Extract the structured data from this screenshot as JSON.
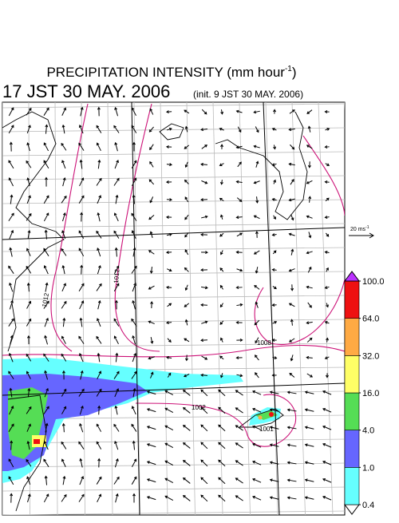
{
  "header": {
    "title": "PRECIPITATION INTENSITY (mm hour",
    "title_superscript": "-1",
    "title_close": ")",
    "valid_time": "17 JST 30 MAY. 2006",
    "init_time": "(init. 9 JST 30 MAY. 2006)"
  },
  "vector_reference": {
    "label": "20 ms",
    "superscript": "-1"
  },
  "isobar_labels": [
    1012,
    1012,
    1008,
    1002,
    1001
  ],
  "colorbar": {
    "ticks": [
      0.4,
      {
        "value": 1,
        "label": "1.0"
      },
      {
        "value": 4,
        "label": "4.0"
      },
      {
        "value": 16,
        "label": "16.0"
      },
      {
        "value": 32,
        "label": "32.0"
      },
      {
        "value": 64,
        "label": "64.0"
      },
      {
        "value": 100,
        "label": "100.0"
      }
    ],
    "colors": [
      "#ffffff",
      "#66ffff",
      "#6666ff",
      "#55dd55",
      "#ffff66",
      "#ffaa44",
      "#ee1111",
      "#bb33ff"
    ]
  }
}
